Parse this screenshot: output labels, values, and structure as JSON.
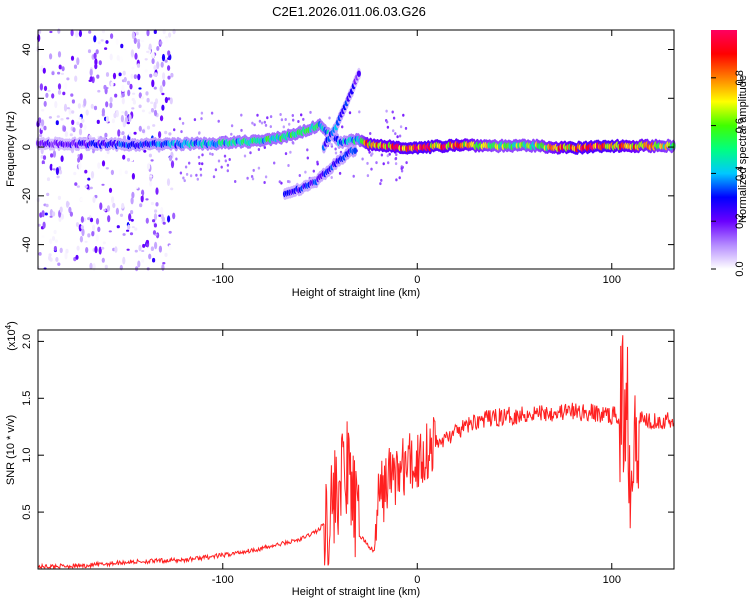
{
  "title": "C2E1.2026.011.06.03.G26",
  "chart_data": [
    {
      "type": "heatmap",
      "title": "C2E1.2026.011.06.03.G26",
      "xlabel": "Height of straight line (km)",
      "ylabel": "Frequency (Hz)",
      "xlim": [
        -195,
        132
      ],
      "ylim": [
        -50,
        48
      ],
      "xticks": [
        -100,
        0,
        100
      ],
      "yticks": [
        -40,
        -20,
        0,
        20,
        40
      ],
      "colorbar": {
        "label": "Normalized spectral amplitude",
        "range": [
          0,
          1
        ],
        "ticks": [
          "0.0",
          "0.2",
          "0.4",
          "0.6",
          "0.8"
        ],
        "colors": [
          "#ffffff",
          "#b58cff",
          "#6a00ff",
          "#0000ff",
          "#00c8ff",
          "#00ff80",
          "#40ff00",
          "#ffff00",
          "#ff8000",
          "#ff0000",
          "#ff0060"
        ]
      },
      "features": [
        {
          "name": "main-carrier",
          "x": [
            -195,
            -150,
            -100,
            -75,
            -60,
            -50,
            -40,
            -30,
            -25,
            0,
            20,
            40,
            60,
            80,
            100,
            132
          ],
          "f": [
            1.5,
            1.0,
            1.5,
            3.0,
            6.0,
            9.0,
            2.0,
            3.0,
            1.0,
            -0.5,
            1.0,
            0.5,
            0.5,
            -0.5,
            0.5,
            0.5
          ],
          "amp": [
            0.2,
            0.3,
            0.45,
            0.5,
            0.5,
            0.5,
            0.35,
            0.5,
            0.8,
            0.9,
            0.85,
            0.6,
            0.6,
            0.9,
            0.9,
            0.6
          ]
        },
        {
          "name": "upper-branch",
          "x": [
            -48,
            -42,
            -38,
            -34,
            -30
          ],
          "f": [
            0,
            8,
            15,
            22,
            30
          ],
          "amp": [
            0.3,
            0.35,
            0.3,
            0.25,
            0.2
          ]
        },
        {
          "name": "lower-branch",
          "x": [
            -68,
            -60,
            -52,
            -45,
            -38,
            -32
          ],
          "f": [
            -19,
            -17,
            -14,
            -9,
            -4,
            -1
          ],
          "amp": [
            0.25,
            0.28,
            0.3,
            0.3,
            0.3,
            0.35
          ]
        }
      ]
    },
    {
      "type": "line",
      "xlabel": "Height of straight line (km)",
      "ylabel": "SNR (10 * v/v)",
      "y_multiplier": "(x10^4)",
      "y_multiplier_base": "(x10",
      "y_multiplier_exp": "4",
      "y_multiplier_close": ")",
      "xlim": [
        -195,
        132
      ],
      "ylim": [
        0,
        2.1
      ],
      "xticks": [
        -100,
        0,
        100
      ],
      "yticks": [
        "0.5",
        "1.0",
        "1.5",
        "2.0"
      ],
      "color": "#ff2020",
      "series": [
        {
          "name": "SNR",
          "x": [
            -195,
            -170,
            -150,
            -120,
            -100,
            -80,
            -70,
            -60,
            -50,
            -45,
            -40,
            -37,
            -35,
            -33,
            -30,
            -27,
            -25,
            -22,
            -20,
            -15,
            -10,
            -5,
            0,
            5,
            10,
            20,
            30,
            40,
            50,
            60,
            70,
            80,
            90,
            100,
            105,
            108,
            110,
            112,
            115,
            120,
            132
          ],
          "y": [
            0.02,
            0.03,
            0.06,
            0.08,
            0.12,
            0.18,
            0.22,
            0.26,
            0.35,
            0.5,
            0.75,
            0.9,
            0.8,
            0.6,
            0.3,
            0.25,
            0.2,
            0.15,
            0.6,
            0.8,
            0.85,
            0.9,
            0.95,
            1.05,
            1.1,
            1.2,
            1.3,
            1.33,
            1.35,
            1.37,
            1.38,
            1.38,
            1.37,
            1.35,
            1.34,
            1.5,
            0.9,
            1.4,
            1.32,
            1.31,
            1.3
          ]
        }
      ]
    }
  ]
}
